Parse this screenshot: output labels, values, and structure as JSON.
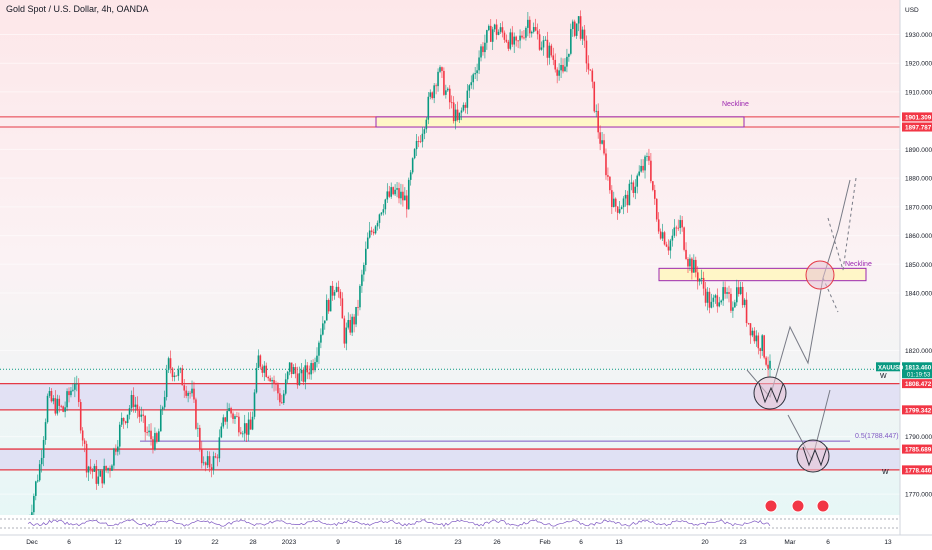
{
  "header": {
    "title": "Gold Spot / U.S. Dollar, 4h, OANDA"
  },
  "currency": "USD",
  "chart_data": {
    "type": "candlestick",
    "symbol": "XAUUSD",
    "ylim": [
      1761,
      1942
    ],
    "yticks": [
      {
        "v": 1930,
        "label": "1930.000"
      },
      {
        "v": 1920,
        "label": "1920.000"
      },
      {
        "v": 1910,
        "label": "1910.000"
      },
      {
        "v": 1890,
        "label": "1890.000"
      },
      {
        "v": 1880,
        "label": "1880.000"
      },
      {
        "v": 1870,
        "label": "1870.000"
      },
      {
        "v": 1860,
        "label": "1860.000"
      },
      {
        "v": 1850,
        "label": "1850.000"
      },
      {
        "v": 1840,
        "label": "1840.000"
      },
      {
        "v": 1820,
        "label": "1820.000"
      },
      {
        "v": 1790,
        "label": "1790.000"
      },
      {
        "v": 1770,
        "label": "1770.000"
      }
    ],
    "xticks": [
      "Dec",
      "6",
      "12",
      "19",
      "22",
      "28",
      "2023",
      "9",
      "16",
      "23",
      "26",
      "Feb",
      "6",
      "13",
      "20",
      "23",
      "Mar",
      "6",
      "13"
    ],
    "price_labels": [
      {
        "v": 1901.309,
        "label": "1901.309",
        "color": "#f23645"
      },
      {
        "v": 1897.787,
        "label": "1897.787",
        "color": "#f23645"
      },
      {
        "v": 1813.46,
        "label": "1813.460",
        "sub": "01:19:53",
        "color": "#089981",
        "tag": "XAUUSD"
      },
      {
        "v": 1808.472,
        "label": "1808.472",
        "color": "#f23645"
      },
      {
        "v": 1799.342,
        "label": "1799.342",
        "color": "#f23645"
      },
      {
        "v": 1785.689,
        "label": "1785.689",
        "color": "#f23645"
      },
      {
        "v": 1778.446,
        "label": "1778.446",
        "color": "#f23645"
      }
    ],
    "path": [
      [
        0,
        1760
      ],
      [
        6,
        1780
      ],
      [
        10,
        1803
      ],
      [
        18,
        1799
      ],
      [
        24,
        1810
      ],
      [
        30,
        1781
      ],
      [
        36,
        1775
      ],
      [
        42,
        1780
      ],
      [
        48,
        1795
      ],
      [
        54,
        1803
      ],
      [
        60,
        1792
      ],
      [
        66,
        1787
      ],
      [
        72,
        1815
      ],
      [
        78,
        1811
      ],
      [
        84,
        1804
      ],
      [
        90,
        1779
      ],
      [
        96,
        1782
      ],
      [
        102,
        1800
      ],
      [
        108,
        1795
      ],
      [
        114,
        1792
      ],
      [
        118,
        1817
      ],
      [
        124,
        1812
      ],
      [
        130,
        1802
      ],
      [
        134,
        1814
      ],
      [
        140,
        1810
      ],
      [
        146,
        1816
      ],
      [
        152,
        1833
      ],
      [
        158,
        1845
      ],
      [
        162,
        1825
      ],
      [
        168,
        1832
      ],
      [
        174,
        1858
      ],
      [
        182,
        1872
      ],
      [
        188,
        1875
      ],
      [
        194,
        1872
      ],
      [
        198,
        1888
      ],
      [
        204,
        1903
      ],
      [
        210,
        1918
      ],
      [
        214,
        1910
      ],
      [
        220,
        1899
      ],
      [
        226,
        1911
      ],
      [
        232,
        1925
      ],
      [
        238,
        1932
      ],
      [
        244,
        1930
      ],
      [
        250,
        1925
      ],
      [
        256,
        1935
      ],
      [
        262,
        1928
      ],
      [
        268,
        1923
      ],
      [
        274,
        1915
      ],
      [
        278,
        1930
      ],
      [
        282,
        1935
      ],
      [
        288,
        1915
      ],
      [
        292,
        1897
      ],
      [
        300,
        1870
      ],
      [
        306,
        1872
      ],
      [
        312,
        1880
      ],
      [
        318,
        1887
      ],
      [
        322,
        1865
      ],
      [
        328,
        1857
      ],
      [
        334,
        1864
      ],
      [
        338,
        1852
      ],
      [
        344,
        1845
      ],
      [
        350,
        1835
      ],
      [
        354,
        1840
      ],
      [
        360,
        1836
      ],
      [
        364,
        1843
      ],
      [
        368,
        1832
      ],
      [
        372,
        1825
      ],
      [
        376,
        1822
      ],
      [
        380,
        1813
      ]
    ],
    "zones": [
      {
        "y1": 1897.787,
        "y2": 1901.309,
        "type": "resistance",
        "label": "Neckline"
      },
      {
        "y1": 1799.342,
        "y2": 1808.472,
        "type": "support"
      },
      {
        "y1": 1778.446,
        "y2": 1785.689,
        "type": "support"
      }
    ],
    "fib": {
      "label": "0.5(1788.447)",
      "v": 1788.447
    },
    "annotations": [
      "Neckline",
      "Neckline",
      "W",
      "W"
    ]
  }
}
